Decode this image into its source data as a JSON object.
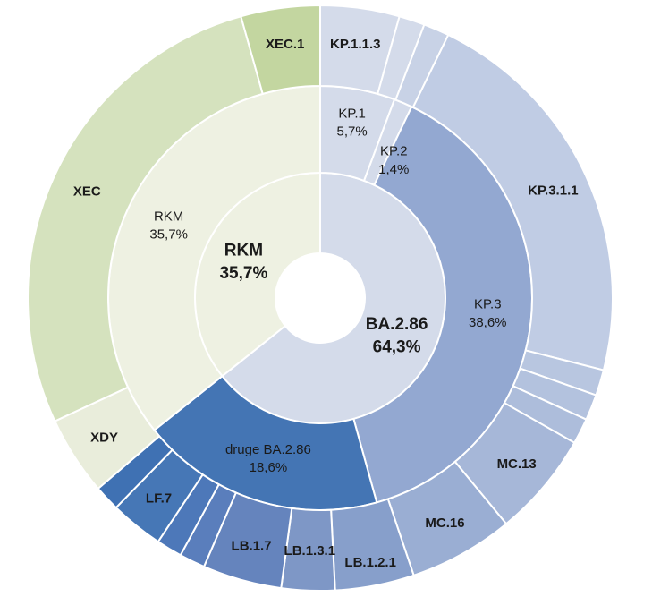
{
  "chart_data": {
    "type": "sunburst",
    "title": "",
    "rings": [
      {
        "level": "inner",
        "segments": [
          {
            "label": "BA.2.86",
            "value_text": "64,3%",
            "value": 64.3,
            "color": "#d4dbea"
          },
          {
            "label": "RKM",
            "value_text": "35,7%",
            "value": 35.7,
            "color": "#eef1e2"
          }
        ]
      },
      {
        "level": "middle",
        "segments": [
          {
            "label": "KP.1",
            "value_text": "5,7%",
            "value": 5.7,
            "color": "#d4dbea"
          },
          {
            "label": "KP.2",
            "value_text": "1,4%",
            "value": 1.4,
            "color": "#d4dbea"
          },
          {
            "label": "KP.3",
            "value_text": "38,6%",
            "value": 38.6,
            "color": "#93a8d1"
          },
          {
            "label": "druge BA.2.86",
            "value_text": "18,6%",
            "value": 18.6,
            "color": "#4475b4"
          },
          {
            "label": "RKM",
            "value_text": "35,7%",
            "value": 35.7,
            "color": "#eef1e2"
          }
        ]
      },
      {
        "level": "outer",
        "segments": [
          {
            "label": "KP.1.1.3",
            "value": 4.3,
            "color": "#d4dbea"
          },
          {
            "label": "",
            "value": 1.4,
            "color": "#d4dbea"
          },
          {
            "label": "",
            "value": 1.4,
            "color": "#c8d2e6"
          },
          {
            "label": "KP.3.1.1",
            "value": 21.4,
            "color": "#c0cce4"
          },
          {
            "label": "",
            "value": 1.4,
            "color": "#b8c6e0"
          },
          {
            "label": "",
            "value": 1.4,
            "color": "#b3c2de"
          },
          {
            "label": "",
            "value": 1.4,
            "color": "#adbddb"
          },
          {
            "label": "MC.13",
            "value": 5.7,
            "color": "#a6b7d8"
          },
          {
            "label": "MC.16",
            "value": 5.7,
            "color": "#9aaed3"
          },
          {
            "label": "LB.1.2.1",
            "value": 4.3,
            "color": "#879fcb"
          },
          {
            "label": "LB.1.3.1",
            "value": 2.9,
            "color": "#7e97c6"
          },
          {
            "label": "LB.1.7",
            "value": 4.3,
            "color": "#6584bd"
          },
          {
            "label": "",
            "value": 1.4,
            "color": "#5a7ebc"
          },
          {
            "label": "",
            "value": 1.4,
            "color": "#4d78b9"
          },
          {
            "label": "LF.7",
            "value": 2.9,
            "color": "#4677b6"
          },
          {
            "label": "",
            "value": 1.4,
            "color": "#3f71b3"
          },
          {
            "label": "XDY",
            "value": 4.3,
            "color": "#e9eddb"
          },
          {
            "label": "XEC",
            "value": 27.1,
            "color": "#d5e2be"
          },
          {
            "label": "XEC.1",
            "value": 4.3,
            "color": "#c3d6a0"
          }
        ]
      }
    ]
  }
}
